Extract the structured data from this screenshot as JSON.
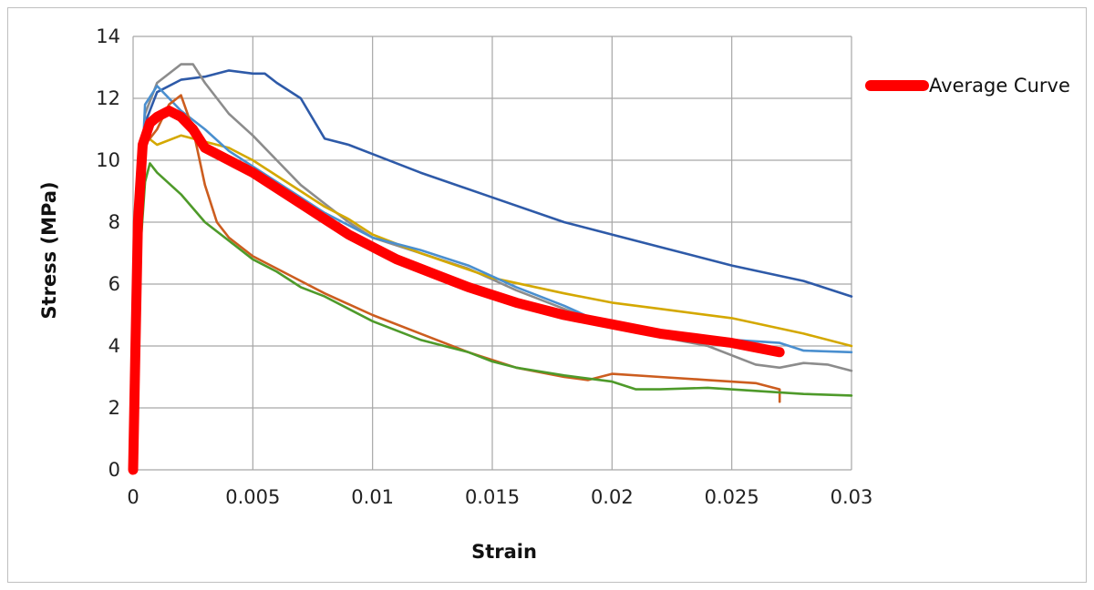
{
  "chart_data": {
    "type": "line",
    "title": "",
    "xlabel": "Strain",
    "ylabel": "Stress (MPa)",
    "xlim": [
      0,
      0.03
    ],
    "ylim": [
      0,
      14
    ],
    "xticks": [
      0,
      0.005,
      0.01,
      0.015,
      0.02,
      0.025,
      0.03
    ],
    "xtick_labels": [
      "0",
      "0.005",
      "0.01",
      "0.015",
      "0.02",
      "0.025",
      "0.03"
    ],
    "yticks": [
      0,
      2,
      4,
      6,
      8,
      10,
      12,
      14
    ],
    "ytick_labels": [
      "0",
      "2",
      "4",
      "6",
      "8",
      "10",
      "12",
      "14"
    ],
    "grid": true,
    "legend_position": "right",
    "legend": [
      "Average Curve"
    ],
    "series": [
      {
        "color": "#2e5aa8",
        "points": [
          [
            0,
            0
          ],
          [
            0.0002,
            7
          ],
          [
            0.0005,
            11.2
          ],
          [
            0.001,
            12.2
          ],
          [
            0.002,
            12.6
          ],
          [
            0.003,
            12.7
          ],
          [
            0.004,
            12.9
          ],
          [
            0.005,
            12.8
          ],
          [
            0.0055,
            12.8
          ],
          [
            0.006,
            12.5
          ],
          [
            0.007,
            12
          ],
          [
            0.008,
            10.7
          ],
          [
            0.009,
            10.5
          ],
          [
            0.01,
            10.2
          ],
          [
            0.012,
            9.6
          ],
          [
            0.015,
            8.8
          ],
          [
            0.018,
            8
          ],
          [
            0.02,
            7.6
          ],
          [
            0.022,
            7.2
          ],
          [
            0.025,
            6.6
          ],
          [
            0.028,
            6.1
          ],
          [
            0.03,
            5.6
          ]
        ]
      },
      {
        "color": "#8c8c8c",
        "points": [
          [
            0,
            0
          ],
          [
            0.0002,
            7
          ],
          [
            0.0005,
            11.5
          ],
          [
            0.001,
            12.5
          ],
          [
            0.002,
            13.1
          ],
          [
            0.0025,
            13.1
          ],
          [
            0.003,
            12.5
          ],
          [
            0.004,
            11.5
          ],
          [
            0.005,
            10.8
          ],
          [
            0.006,
            10
          ],
          [
            0.007,
            9.2
          ],
          [
            0.008,
            8.6
          ],
          [
            0.009,
            8
          ],
          [
            0.01,
            7.5
          ],
          [
            0.012,
            7
          ],
          [
            0.014,
            6.5
          ],
          [
            0.016,
            5.8
          ],
          [
            0.018,
            5.2
          ],
          [
            0.02,
            4.6
          ],
          [
            0.022,
            4.3
          ],
          [
            0.024,
            4
          ],
          [
            0.026,
            3.4
          ],
          [
            0.027,
            3.3
          ],
          [
            0.028,
            3.45
          ],
          [
            0.029,
            3.4
          ],
          [
            0.03,
            3.2
          ]
        ]
      },
      {
        "color": "#d4a800",
        "points": [
          [
            0,
            0
          ],
          [
            0.0002,
            6.5
          ],
          [
            0.0005,
            10.8
          ],
          [
            0.001,
            10.5
          ],
          [
            0.002,
            10.8
          ],
          [
            0.003,
            10.6
          ],
          [
            0.004,
            10.4
          ],
          [
            0.005,
            10
          ],
          [
            0.006,
            9.5
          ],
          [
            0.007,
            9
          ],
          [
            0.008,
            8.5
          ],
          [
            0.009,
            8.1
          ],
          [
            0.01,
            7.6
          ],
          [
            0.012,
            7
          ],
          [
            0.015,
            6.2
          ],
          [
            0.018,
            5.7
          ],
          [
            0.02,
            5.4
          ],
          [
            0.022,
            5.2
          ],
          [
            0.025,
            4.9
          ],
          [
            0.028,
            4.4
          ],
          [
            0.03,
            4
          ]
        ]
      },
      {
        "color": "#4a8fcf",
        "points": [
          [
            0,
            0
          ],
          [
            0.0002,
            7
          ],
          [
            0.0005,
            11.8
          ],
          [
            0.001,
            12.4
          ],
          [
            0.0015,
            12
          ],
          [
            0.002,
            11.6
          ],
          [
            0.003,
            11
          ],
          [
            0.004,
            10.3
          ],
          [
            0.005,
            9.8
          ],
          [
            0.006,
            9.3
          ],
          [
            0.007,
            8.8
          ],
          [
            0.008,
            8.3
          ],
          [
            0.009,
            7.9
          ],
          [
            0.01,
            7.5
          ],
          [
            0.012,
            7.1
          ],
          [
            0.014,
            6.6
          ],
          [
            0.016,
            5.9
          ],
          [
            0.018,
            5.3
          ],
          [
            0.02,
            4.6
          ],
          [
            0.022,
            4.4
          ],
          [
            0.025,
            4.2
          ],
          [
            0.027,
            4.1
          ],
          [
            0.028,
            3.85
          ],
          [
            0.03,
            3.8
          ]
        ]
      },
      {
        "color": "#cc5d1f",
        "points": [
          [
            0,
            0
          ],
          [
            0.0002,
            7
          ],
          [
            0.0005,
            10.5
          ],
          [
            0.001,
            11
          ],
          [
            0.0015,
            11.8
          ],
          [
            0.002,
            12.1
          ],
          [
            0.0025,
            11
          ],
          [
            0.003,
            9.2
          ],
          [
            0.0035,
            8
          ],
          [
            0.004,
            7.5
          ],
          [
            0.005,
            6.9
          ],
          [
            0.006,
            6.5
          ],
          [
            0.007,
            6.1
          ],
          [
            0.008,
            5.7
          ],
          [
            0.01,
            5
          ],
          [
            0.012,
            4.4
          ],
          [
            0.014,
            3.8
          ],
          [
            0.016,
            3.3
          ],
          [
            0.018,
            3
          ],
          [
            0.019,
            2.9
          ],
          [
            0.02,
            3.1
          ],
          [
            0.022,
            3
          ],
          [
            0.024,
            2.9
          ],
          [
            0.026,
            2.8
          ],
          [
            0.027,
            2.6
          ],
          [
            0.027,
            2.2
          ]
        ]
      },
      {
        "color": "#4e9a2a",
        "points": [
          [
            0,
            0
          ],
          [
            0.0002,
            6
          ],
          [
            0.0005,
            9.3
          ],
          [
            0.0007,
            9.9
          ],
          [
            0.001,
            9.6
          ],
          [
            0.002,
            8.9
          ],
          [
            0.003,
            8
          ],
          [
            0.004,
            7.4
          ],
          [
            0.005,
            6.8
          ],
          [
            0.006,
            6.4
          ],
          [
            0.007,
            5.9
          ],
          [
            0.008,
            5.6
          ],
          [
            0.01,
            4.8
          ],
          [
            0.012,
            4.2
          ],
          [
            0.014,
            3.8
          ],
          [
            0.015,
            3.5
          ],
          [
            0.016,
            3.3
          ],
          [
            0.018,
            3.05
          ],
          [
            0.02,
            2.85
          ],
          [
            0.021,
            2.6
          ],
          [
            0.022,
            2.6
          ],
          [
            0.024,
            2.65
          ],
          [
            0.026,
            2.55
          ],
          [
            0.028,
            2.45
          ],
          [
            0.03,
            2.4
          ]
        ]
      },
      {
        "name": "Average Curve",
        "color": "#ff0000",
        "points": [
          [
            0,
            0
          ],
          [
            0.0001,
            4
          ],
          [
            0.0002,
            8
          ],
          [
            0.0004,
            10.5
          ],
          [
            0.0007,
            11.2
          ],
          [
            0.001,
            11.4
          ],
          [
            0.0015,
            11.6
          ],
          [
            0.002,
            11.4
          ],
          [
            0.0025,
            11
          ],
          [
            0.003,
            10.4
          ],
          [
            0.004,
            10
          ],
          [
            0.005,
            9.6
          ],
          [
            0.006,
            9.1
          ],
          [
            0.007,
            8.6
          ],
          [
            0.008,
            8.1
          ],
          [
            0.009,
            7.6
          ],
          [
            0.01,
            7.2
          ],
          [
            0.011,
            6.8
          ],
          [
            0.012,
            6.5
          ],
          [
            0.013,
            6.2
          ],
          [
            0.014,
            5.9
          ],
          [
            0.015,
            5.65
          ],
          [
            0.016,
            5.4
          ],
          [
            0.017,
            5.2
          ],
          [
            0.018,
            5
          ],
          [
            0.019,
            4.85
          ],
          [
            0.02,
            4.7
          ],
          [
            0.021,
            4.55
          ],
          [
            0.022,
            4.4
          ],
          [
            0.023,
            4.3
          ],
          [
            0.024,
            4.2
          ],
          [
            0.025,
            4.1
          ],
          [
            0.026,
            3.95
          ],
          [
            0.027,
            3.8
          ]
        ]
      }
    ]
  }
}
